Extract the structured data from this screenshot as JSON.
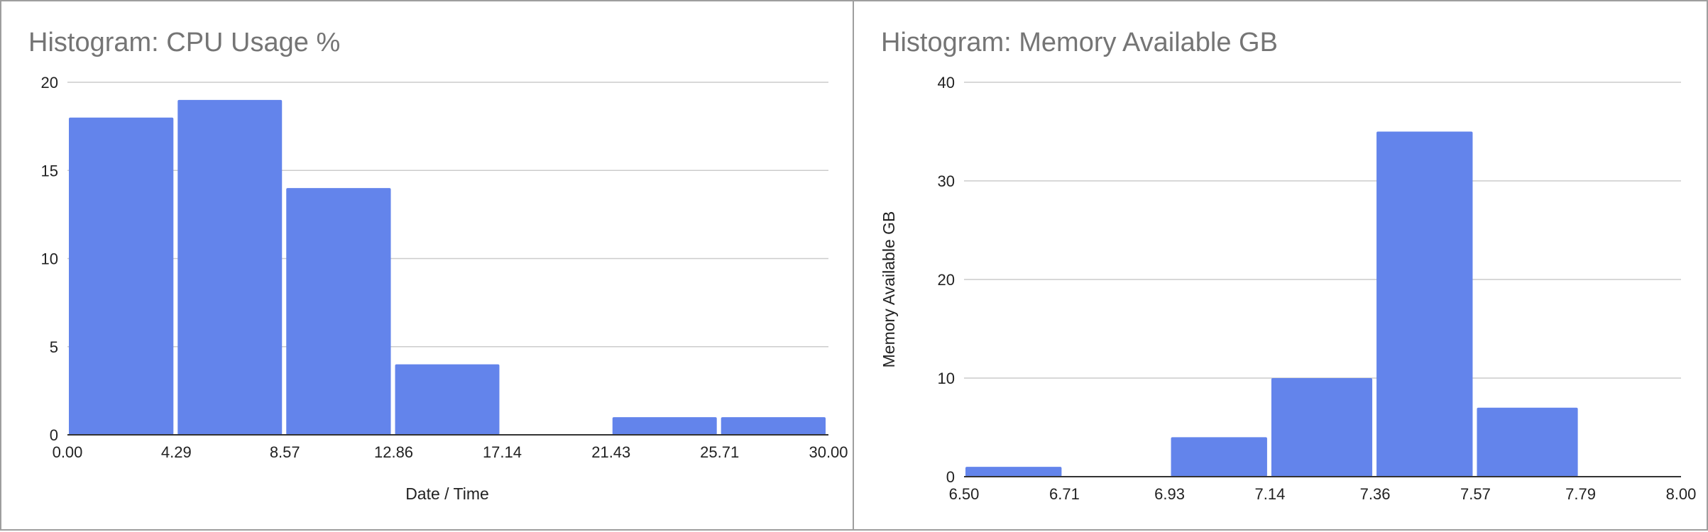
{
  "chart_data": [
    {
      "type": "bar",
      "subtype": "histogram",
      "title": "Histogram: CPU Usage %",
      "xlabel": "Date / Time",
      "ylabel": "",
      "x_ticks": [
        "0.00",
        "4.29",
        "8.57",
        "12.86",
        "17.14",
        "21.43",
        "25.71",
        "30.00"
      ],
      "y_ticks": [
        "0",
        "5",
        "10",
        "15",
        "20"
      ],
      "xlim": [
        0,
        30
      ],
      "ylim": [
        0,
        20
      ],
      "bin_edges": [
        0,
        4.29,
        8.57,
        12.86,
        17.14,
        21.43,
        25.71,
        30
      ],
      "values": [
        18,
        19,
        14,
        4,
        0,
        1,
        1
      ],
      "color": "#6384eb",
      "grid": true,
      "legend": "none"
    },
    {
      "type": "bar",
      "subtype": "histogram",
      "title": "Histogram: Memory Available GB",
      "xlabel": "",
      "ylabel": "Memory Available GB",
      "x_ticks": [
        "6.50",
        "6.71",
        "6.93",
        "7.14",
        "7.36",
        "7.57",
        "7.79",
        "8.00"
      ],
      "y_ticks": [
        "0",
        "10",
        "20",
        "30",
        "40"
      ],
      "xlim": [
        6.5,
        8.0
      ],
      "ylim": [
        0,
        40
      ],
      "bin_edges": [
        6.5,
        6.71,
        6.93,
        7.14,
        7.36,
        7.57,
        7.79,
        8.0
      ],
      "values": [
        1,
        0,
        4,
        10,
        35,
        7,
        0
      ],
      "color": "#6384eb",
      "grid": true,
      "legend": "none"
    }
  ]
}
